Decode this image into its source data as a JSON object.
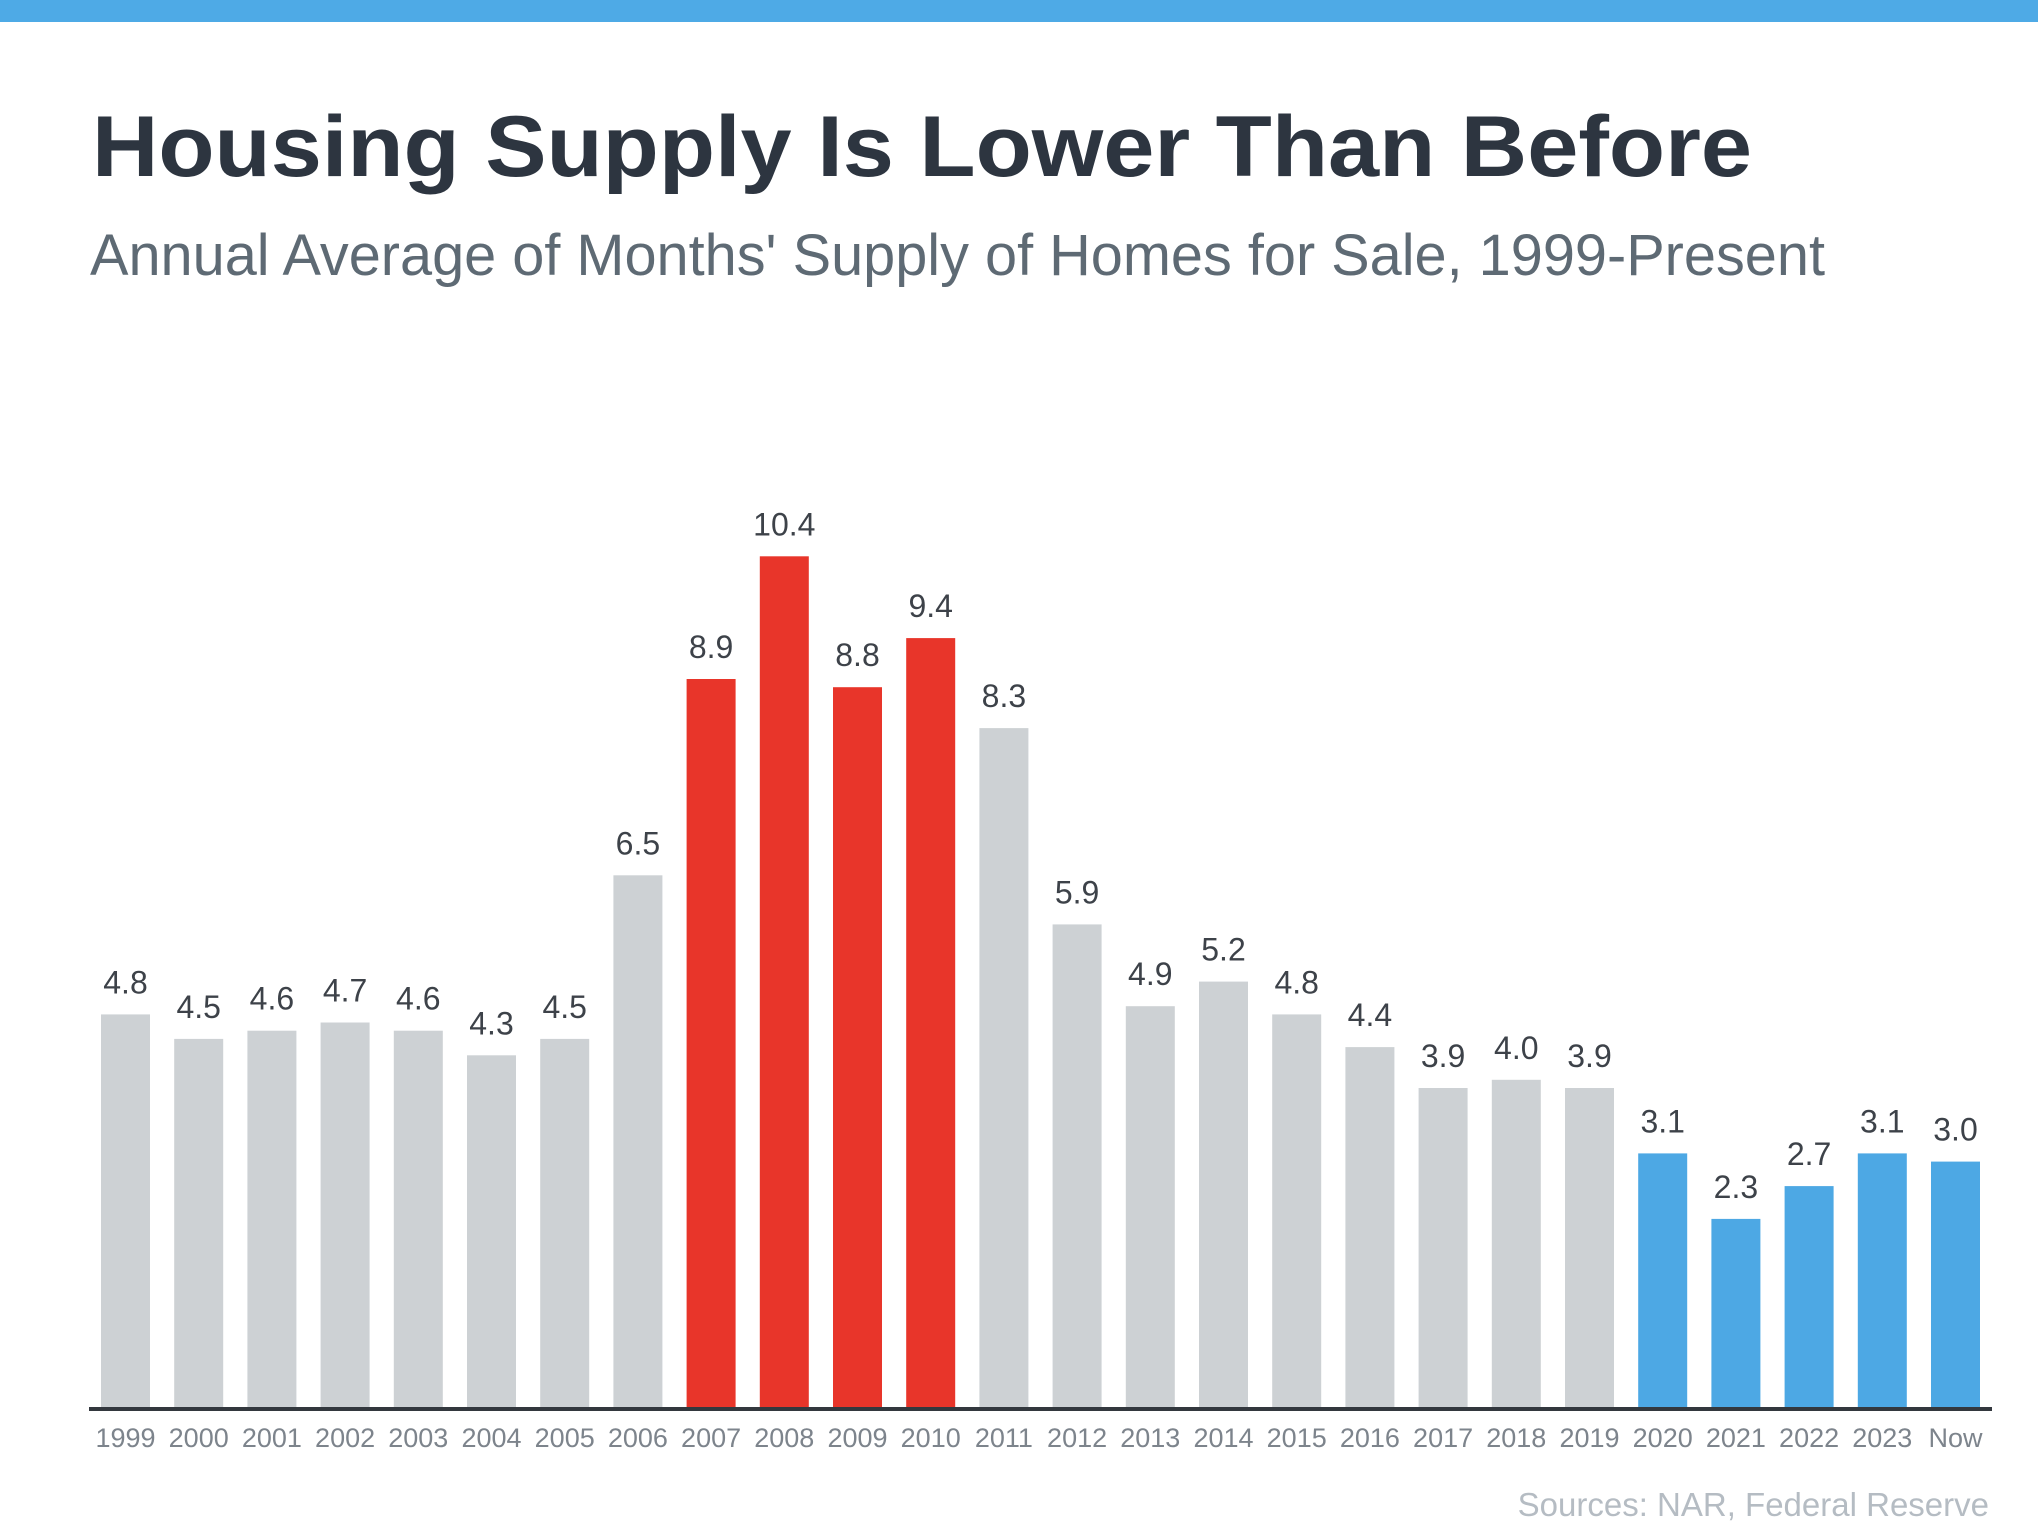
{
  "header": {
    "title": "Housing Supply Is Lower Than Before",
    "subtitle": "Annual Average of Months' Supply of Homes for Sale, 1999-Present"
  },
  "footer": {
    "source": "Sources: NAR, Federal Reserve"
  },
  "colors": {
    "accent_bar": "#4eaae6",
    "neutral": "#cdd1d4",
    "highlight_crash": "#e8352a",
    "highlight_recent": "#4da8e4",
    "axis": "#33383e"
  },
  "chart_data": {
    "type": "bar",
    "title": "Housing Supply Is Lower Than Before",
    "subtitle": "Annual Average of Months' Supply of Homes for Sale, 1999-Present",
    "xlabel": "",
    "ylabel": "",
    "categories": [
      "1999",
      "2000",
      "2001",
      "2002",
      "2003",
      "2004",
      "2005",
      "2006",
      "2007",
      "2008",
      "2009",
      "2010",
      "2011",
      "2012",
      "2013",
      "2014",
      "2015",
      "2016",
      "2017",
      "2018",
      "2019",
      "2020",
      "2021",
      "2022",
      "2023",
      "Now"
    ],
    "values": [
      4.8,
      4.5,
      4.6,
      4.7,
      4.6,
      4.3,
      4.5,
      6.5,
      8.9,
      10.4,
      8.8,
      9.4,
      8.3,
      5.9,
      4.9,
      5.2,
      4.8,
      4.4,
      3.9,
      4.0,
      3.9,
      3.1,
      2.3,
      2.7,
      3.1,
      3.0
    ],
    "value_labels": [
      "4.8",
      "4.5",
      "4.6",
      "4.7",
      "4.6",
      "4.3",
      "4.5",
      "6.5",
      "8.9",
      "10.4",
      "8.8",
      "9.4",
      "8.3",
      "5.9",
      "4.9",
      "5.2",
      "4.8",
      "4.4",
      "3.9",
      "4.0",
      "3.9",
      "3.1",
      "2.3",
      "2.7",
      "3.1",
      "3.0"
    ],
    "bar_groups": [
      "neutral",
      "neutral",
      "neutral",
      "neutral",
      "neutral",
      "neutral",
      "neutral",
      "neutral",
      "highlight_crash",
      "highlight_crash",
      "highlight_crash",
      "highlight_crash",
      "neutral",
      "neutral",
      "neutral",
      "neutral",
      "neutral",
      "neutral",
      "neutral",
      "neutral",
      "neutral",
      "highlight_recent",
      "highlight_recent",
      "highlight_recent",
      "highlight_recent",
      "highlight_recent"
    ],
    "ylim": [
      0,
      12
    ],
    "grid": false,
    "y_axis_visible": false,
    "legend": "none",
    "source": "Sources: NAR, Federal Reserve"
  }
}
